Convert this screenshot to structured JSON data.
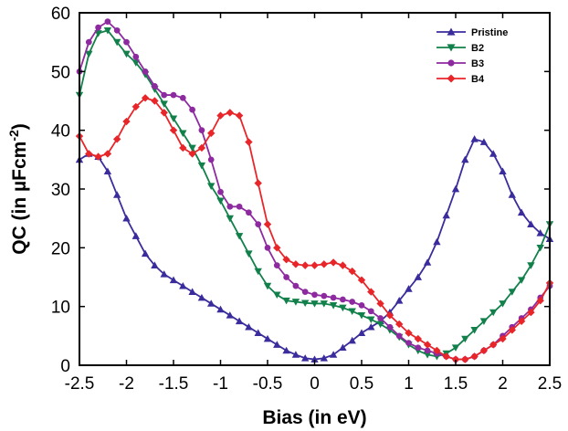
{
  "chart_data": {
    "type": "line",
    "xlabel": "Bias (in eV)",
    "ylabel_prefix": "QC (in µFcm",
    "ylabel_sup": "-2",
    "ylabel_suffix": ")",
    "xlim": [
      -2.5,
      2.5
    ],
    "ylim": [
      0,
      60
    ],
    "x_ticks": [
      -2.5,
      -2,
      -1.5,
      -1,
      -0.5,
      0,
      0.5,
      1,
      1.5,
      2,
      2.5
    ],
    "x_tick_labels": [
      "-2.5",
      "-2",
      "-1.5",
      "-1",
      "-0.5",
      "0",
      "0.5",
      "1",
      "1.5",
      "2",
      "2.5"
    ],
    "y_ticks": [
      0,
      10,
      20,
      30,
      40,
      50,
      60
    ],
    "y_tick_labels": [
      "0",
      "10",
      "20",
      "30",
      "40",
      "50",
      "60"
    ],
    "grid": false,
    "legend_position": "top-right",
    "series": [
      {
        "name": "Pristine",
        "color": "#3a2c9c",
        "marker": "triangle-up",
        "x": [
          -2.5,
          -2.4,
          -2.3,
          -2.2,
          -2.1,
          -2.0,
          -1.9,
          -1.8,
          -1.7,
          -1.6,
          -1.5,
          -1.4,
          -1.3,
          -1.2,
          -1.1,
          -1.0,
          -0.9,
          -0.8,
          -0.7,
          -0.6,
          -0.5,
          -0.4,
          -0.3,
          -0.2,
          -0.1,
          0.0,
          0.1,
          0.2,
          0.3,
          0.4,
          0.5,
          0.6,
          0.7,
          0.8,
          0.9,
          1.0,
          1.1,
          1.2,
          1.3,
          1.4,
          1.5,
          1.6,
          1.7,
          1.8,
          1.9,
          2.0,
          2.1,
          2.2,
          2.3,
          2.4,
          2.5
        ],
        "y": [
          35,
          36,
          35.5,
          33,
          29,
          25,
          22,
          19,
          17,
          15.5,
          14.5,
          13.5,
          12.5,
          11.5,
          10.5,
          9.5,
          8.5,
          7.5,
          6.5,
          5.5,
          4.5,
          3.5,
          2.5,
          1.8,
          1.2,
          1.0,
          1.2,
          1.8,
          3.0,
          4.2,
          5.5,
          6.5,
          7.5,
          9.0,
          11,
          13,
          15,
          17.5,
          21,
          25.5,
          30,
          35,
          38.5,
          38,
          36,
          33,
          29,
          26,
          24,
          22.5,
          21.5
        ]
      },
      {
        "name": "B2",
        "color": "#12804a",
        "marker": "triangle-down",
        "x": [
          -2.5,
          -2.4,
          -2.3,
          -2.2,
          -2.1,
          -2.0,
          -1.9,
          -1.8,
          -1.7,
          -1.6,
          -1.5,
          -1.4,
          -1.3,
          -1.2,
          -1.1,
          -1.0,
          -0.9,
          -0.8,
          -0.7,
          -0.6,
          -0.5,
          -0.4,
          -0.3,
          -0.2,
          -0.1,
          0.0,
          0.1,
          0.2,
          0.3,
          0.4,
          0.5,
          0.6,
          0.7,
          0.8,
          0.9,
          1.0,
          1.1,
          1.2,
          1.3,
          1.4,
          1.5,
          1.6,
          1.7,
          1.8,
          1.9,
          2.0,
          2.1,
          2.2,
          2.3,
          2.4,
          2.5
        ],
        "y": [
          46,
          53,
          56.5,
          57,
          55,
          53,
          51.5,
          49.5,
          47,
          44.5,
          42,
          39.5,
          37,
          34,
          30.5,
          28,
          25,
          22,
          19,
          16,
          13.5,
          12,
          11,
          10.8,
          10.6,
          10.5,
          10.5,
          10.2,
          9.8,
          9.2,
          8.5,
          7.8,
          7.0,
          6.0,
          4.8,
          3.5,
          2.5,
          1.8,
          1.5,
          2.0,
          3.0,
          4.5,
          6.0,
          7.5,
          9.0,
          10.5,
          12.5,
          14.5,
          17,
          20,
          24
        ]
      },
      {
        "name": "B3",
        "color": "#8e2aa0",
        "marker": "circle",
        "x": [
          -2.5,
          -2.4,
          -2.3,
          -2.2,
          -2.1,
          -2.0,
          -1.9,
          -1.8,
          -1.7,
          -1.6,
          -1.5,
          -1.4,
          -1.3,
          -1.2,
          -1.1,
          -1.0,
          -0.9,
          -0.8,
          -0.7,
          -0.6,
          -0.5,
          -0.4,
          -0.3,
          -0.2,
          -0.1,
          0.0,
          0.1,
          0.2,
          0.3,
          0.4,
          0.5,
          0.6,
          0.7,
          0.8,
          0.9,
          1.0,
          1.1,
          1.2,
          1.3,
          1.4,
          1.5,
          1.6,
          1.7,
          1.8,
          1.9,
          2.0,
          2.1,
          2.2,
          2.3,
          2.4,
          2.5
        ],
        "y": [
          50,
          55,
          57.5,
          58.5,
          57,
          55,
          52.5,
          50,
          47.5,
          46,
          46,
          45.5,
          43.5,
          40,
          35,
          29.5,
          27,
          27,
          26,
          24,
          20,
          17,
          15,
          13.5,
          12.5,
          12,
          11.8,
          11.5,
          11.2,
          10.8,
          10.2,
          9.2,
          8.0,
          6.5,
          5.0,
          3.8,
          3.0,
          2.5,
          2.0,
          1.5,
          1.0,
          1.0,
          1.5,
          2.5,
          3.5,
          5.0,
          6.5,
          8.0,
          9.5,
          11.5,
          13.5
        ]
      },
      {
        "name": "B4",
        "color": "#e8262a",
        "marker": "diamond",
        "x": [
          -2.5,
          -2.4,
          -2.3,
          -2.2,
          -2.1,
          -2.0,
          -1.9,
          -1.8,
          -1.7,
          -1.6,
          -1.5,
          -1.4,
          -1.3,
          -1.2,
          -1.1,
          -1.0,
          -0.9,
          -0.8,
          -0.7,
          -0.6,
          -0.5,
          -0.4,
          -0.3,
          -0.2,
          -0.1,
          0.0,
          0.1,
          0.2,
          0.3,
          0.4,
          0.5,
          0.6,
          0.7,
          0.8,
          0.9,
          1.0,
          1.1,
          1.2,
          1.3,
          1.4,
          1.5,
          1.6,
          1.7,
          1.8,
          1.9,
          2.0,
          2.1,
          2.2,
          2.3,
          2.4,
          2.5
        ],
        "y": [
          39,
          36,
          35.5,
          36,
          38.5,
          41.5,
          44,
          45.5,
          45,
          43,
          40,
          37,
          36,
          37,
          39.5,
          42.5,
          43,
          42.5,
          38,
          31,
          24,
          20,
          18,
          17.2,
          17,
          17,
          17.2,
          17.5,
          17,
          16,
          14.5,
          12.5,
          10.5,
          8.5,
          7.0,
          5.5,
          4.5,
          3.5,
          2.5,
          1.5,
          1.0,
          1.0,
          1.5,
          2.5,
          3.5,
          4.5,
          6.0,
          7.5,
          9.0,
          11,
          14
        ]
      }
    ]
  }
}
